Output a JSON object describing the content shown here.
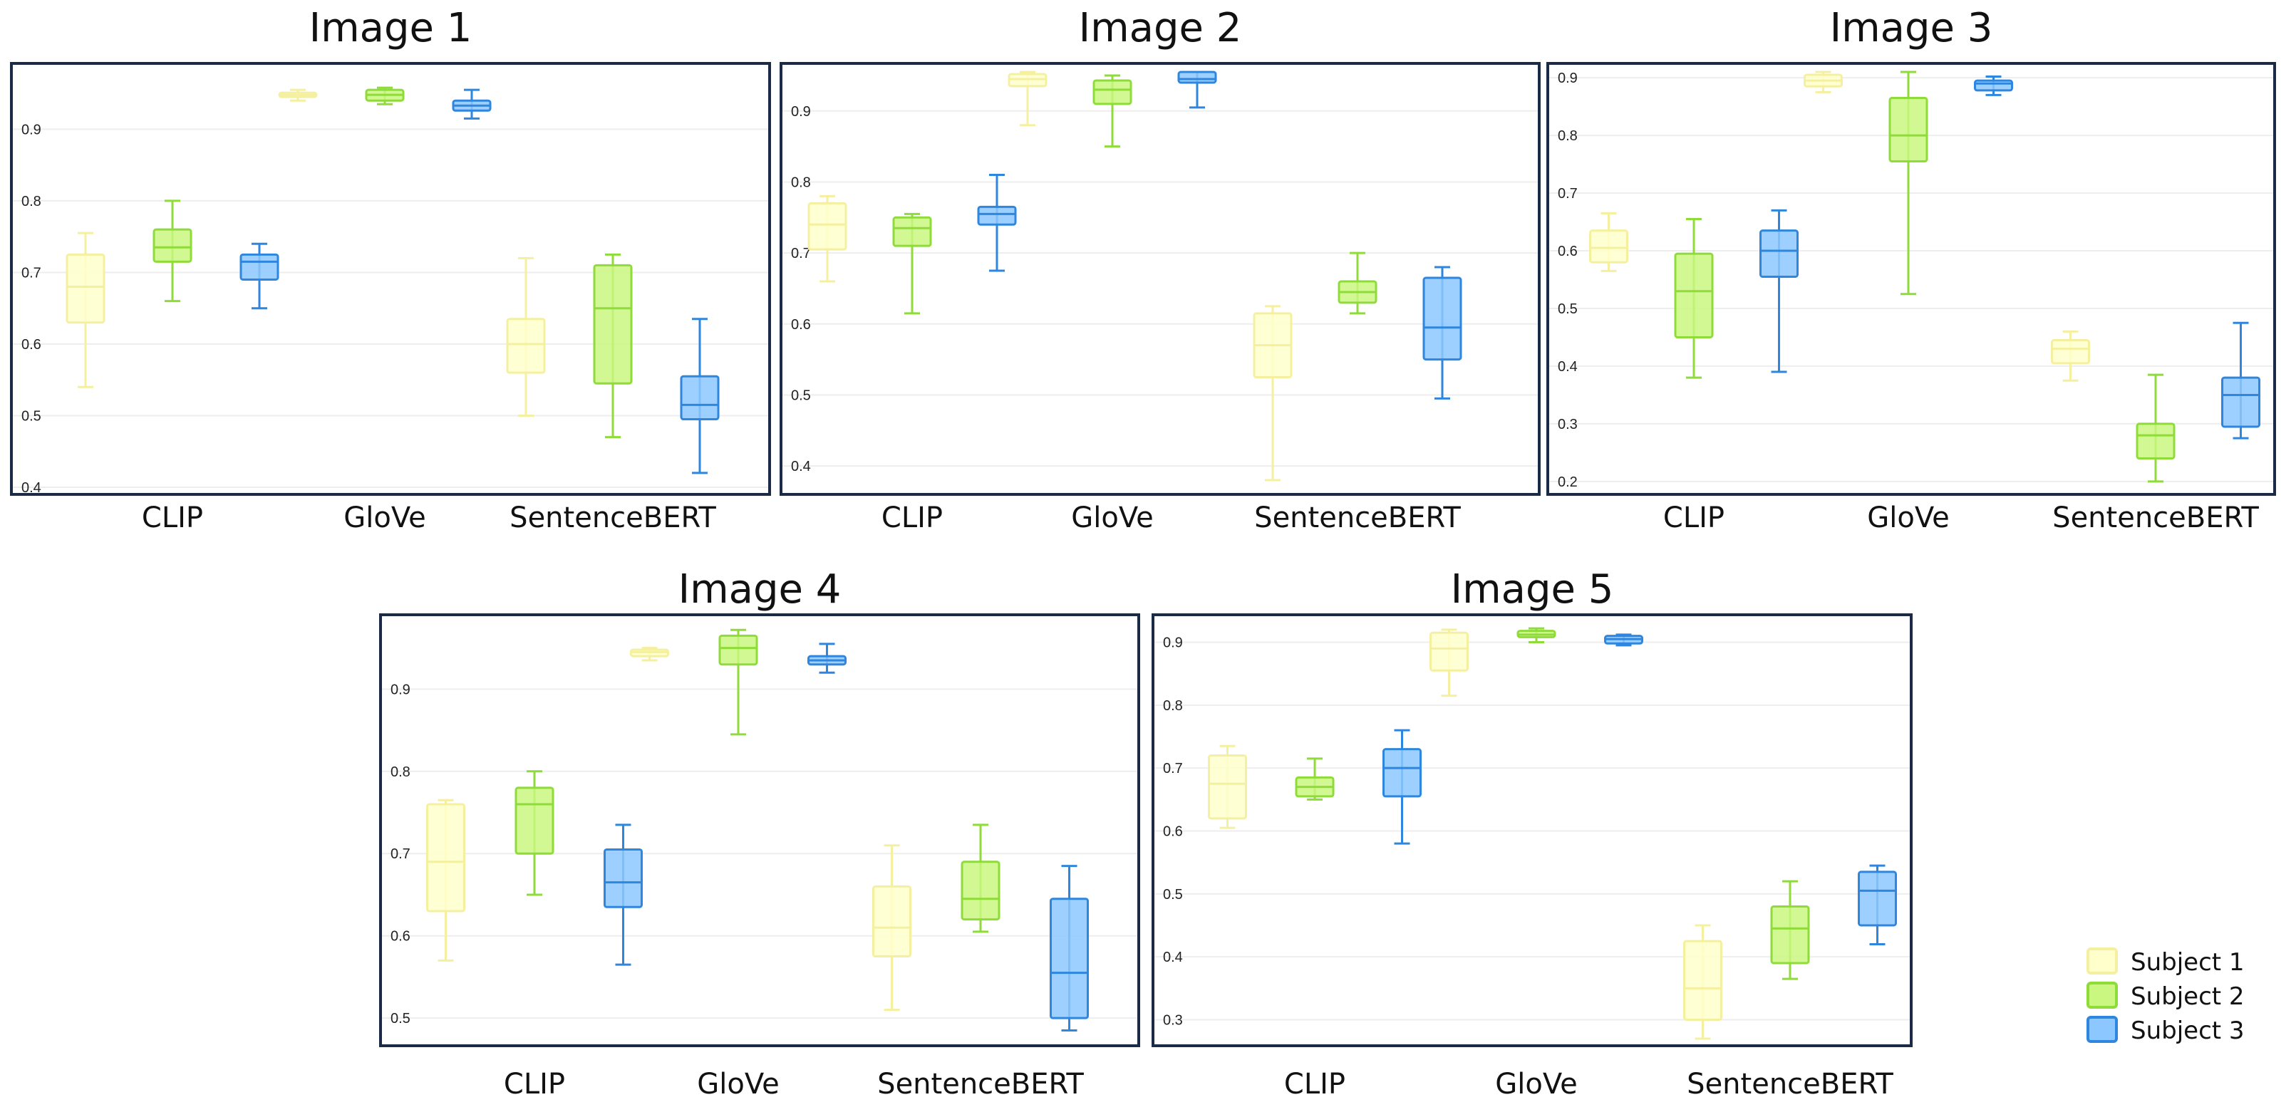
{
  "legend": {
    "entries": [
      {
        "label": "Subject 1",
        "fill": "#FFFFCC",
        "stroke": "#F4F0A0"
      },
      {
        "label": "Subject 2",
        "fill": "#C9F77F",
        "stroke": "#8FDB3A"
      },
      {
        "label": "Subject 3",
        "fill": "#8CC8FF",
        "stroke": "#2E86DE"
      }
    ]
  },
  "chart_data": [
    {
      "type": "box",
      "title": "Image 1",
      "categories": [
        "CLIP",
        "GloVe",
        "SentenceBERT"
      ],
      "ylim": [
        0.4,
        0.98
      ],
      "yticks": [
        "0.4",
        "0.5",
        "0.6",
        "0.7",
        "0.8",
        "0.9"
      ],
      "series": [
        {
          "name": "Subject 1",
          "boxes": [
            {
              "min": 0.54,
              "q1": 0.63,
              "median": 0.68,
              "q3": 0.725,
              "max": 0.755
            },
            {
              "min": 0.94,
              "q1": 0.945,
              "median": 0.948,
              "q3": 0.951,
              "max": 0.955
            },
            {
              "min": 0.5,
              "q1": 0.56,
              "median": 0.6,
              "q3": 0.635,
              "max": 0.72
            }
          ]
        },
        {
          "name": "Subject 2",
          "boxes": [
            {
              "min": 0.66,
              "q1": 0.715,
              "median": 0.735,
              "q3": 0.76,
              "max": 0.8
            },
            {
              "min": 0.935,
              "q1": 0.94,
              "median": 0.948,
              "q3": 0.955,
              "max": 0.958
            },
            {
              "min": 0.47,
              "q1": 0.545,
              "median": 0.65,
              "q3": 0.71,
              "max": 0.725
            }
          ]
        },
        {
          "name": "Subject 3",
          "boxes": [
            {
              "min": 0.65,
              "q1": 0.69,
              "median": 0.715,
              "q3": 0.725,
              "max": 0.74
            },
            {
              "min": 0.915,
              "q1": 0.926,
              "median": 0.933,
              "q3": 0.94,
              "max": 0.955
            },
            {
              "min": 0.42,
              "q1": 0.495,
              "median": 0.515,
              "q3": 0.555,
              "max": 0.635
            }
          ]
        }
      ]
    },
    {
      "type": "box",
      "title": "Image 2",
      "categories": [
        "CLIP",
        "GloVe",
        "SentenceBERT"
      ],
      "ylim": [
        0.37,
        0.955
      ],
      "yticks": [
        "0.4",
        "0.5",
        "0.6",
        "0.7",
        "0.8",
        "0.9"
      ],
      "series": [
        {
          "name": "Subject 1",
          "boxes": [
            {
              "min": 0.66,
              "q1": 0.705,
              "median": 0.74,
              "q3": 0.77,
              "max": 0.78
            },
            {
              "min": 0.88,
              "q1": 0.935,
              "median": 0.945,
              "q3": 0.952,
              "max": 0.955
            },
            {
              "min": 0.38,
              "q1": 0.525,
              "median": 0.57,
              "q3": 0.615,
              "max": 0.625
            }
          ]
        },
        {
          "name": "Subject 2",
          "boxes": [
            {
              "min": 0.615,
              "q1": 0.71,
              "median": 0.735,
              "q3": 0.75,
              "max": 0.755
            },
            {
              "min": 0.85,
              "q1": 0.91,
              "median": 0.93,
              "q3": 0.943,
              "max": 0.95
            },
            {
              "min": 0.615,
              "q1": 0.63,
              "median": 0.645,
              "q3": 0.66,
              "max": 0.7
            }
          ]
        },
        {
          "name": "Subject 3",
          "boxes": [
            {
              "min": 0.675,
              "q1": 0.74,
              "median": 0.755,
              "q3": 0.765,
              "max": 0.81
            },
            {
              "min": 0.905,
              "q1": 0.94,
              "median": 0.945,
              "q3": 0.955,
              "max": 0.955
            },
            {
              "min": 0.495,
              "q1": 0.55,
              "median": 0.595,
              "q3": 0.665,
              "max": 0.68
            }
          ]
        }
      ]
    },
    {
      "type": "box",
      "title": "Image 3",
      "categories": [
        "CLIP",
        "GloVe",
        "SentenceBERT"
      ],
      "ylim": [
        0.19,
        0.91
      ],
      "yticks": [
        "0.2",
        "0.3",
        "0.4",
        "0.5",
        "0.6",
        "0.7",
        "0.8",
        "0.9"
      ],
      "series": [
        {
          "name": "Subject 1",
          "boxes": [
            {
              "min": 0.565,
              "q1": 0.58,
              "median": 0.605,
              "q3": 0.635,
              "max": 0.665
            },
            {
              "min": 0.875,
              "q1": 0.885,
              "median": 0.895,
              "q3": 0.905,
              "max": 0.91
            },
            {
              "min": 0.375,
              "q1": 0.405,
              "median": 0.43,
              "q3": 0.445,
              "max": 0.46
            }
          ]
        },
        {
          "name": "Subject 2",
          "boxes": [
            {
              "min": 0.38,
              "q1": 0.45,
              "median": 0.53,
              "q3": 0.595,
              "max": 0.655
            },
            {
              "min": 0.525,
              "q1": 0.755,
              "median": 0.8,
              "q3": 0.865,
              "max": 0.91
            },
            {
              "min": 0.2,
              "q1": 0.24,
              "median": 0.28,
              "q3": 0.3,
              "max": 0.385
            }
          ]
        },
        {
          "name": "Subject 3",
          "boxes": [
            {
              "min": 0.39,
              "q1": 0.555,
              "median": 0.6,
              "q3": 0.635,
              "max": 0.67
            },
            {
              "min": 0.87,
              "q1": 0.878,
              "median": 0.89,
              "q3": 0.895,
              "max": 0.902
            },
            {
              "min": 0.275,
              "q1": 0.295,
              "median": 0.35,
              "q3": 0.38,
              "max": 0.475
            }
          ]
        }
      ]
    },
    {
      "type": "box",
      "title": "Image 4",
      "categories": [
        "CLIP",
        "GloVe",
        "SentenceBERT"
      ],
      "ylim": [
        0.475,
        0.98
      ],
      "yticks": [
        "0.5",
        "0.6",
        "0.7",
        "0.8",
        "0.9"
      ],
      "series": [
        {
          "name": "Subject 1",
          "boxes": [
            {
              "min": 0.57,
              "q1": 0.63,
              "median": 0.69,
              "q3": 0.76,
              "max": 0.765
            },
            {
              "min": 0.935,
              "q1": 0.94,
              "median": 0.945,
              "q3": 0.948,
              "max": 0.95
            },
            {
              "min": 0.51,
              "q1": 0.575,
              "median": 0.61,
              "q3": 0.66,
              "max": 0.71
            }
          ]
        },
        {
          "name": "Subject 2",
          "boxes": [
            {
              "min": 0.65,
              "q1": 0.7,
              "median": 0.76,
              "q3": 0.78,
              "max": 0.8
            },
            {
              "min": 0.845,
              "q1": 0.93,
              "median": 0.95,
              "q3": 0.965,
              "max": 0.972
            },
            {
              "min": 0.605,
              "q1": 0.62,
              "median": 0.645,
              "q3": 0.69,
              "max": 0.735
            }
          ]
        },
        {
          "name": "Subject 3",
          "boxes": [
            {
              "min": 0.565,
              "q1": 0.635,
              "median": 0.665,
              "q3": 0.705,
              "max": 0.735
            },
            {
              "min": 0.92,
              "q1": 0.93,
              "median": 0.935,
              "q3": 0.94,
              "max": 0.955
            },
            {
              "min": 0.485,
              "q1": 0.5,
              "median": 0.555,
              "q3": 0.645,
              "max": 0.685
            }
          ]
        }
      ]
    },
    {
      "type": "box",
      "title": "Image 5",
      "categories": [
        "CLIP",
        "GloVe",
        "SentenceBERT"
      ],
      "ylim": [
        0.27,
        0.93
      ],
      "yticks": [
        "0.3",
        "0.4",
        "0.5",
        "0.6",
        "0.7",
        "0.8",
        "0.9"
      ],
      "series": [
        {
          "name": "Subject 1",
          "boxes": [
            {
              "min": 0.605,
              "q1": 0.62,
              "median": 0.675,
              "q3": 0.72,
              "max": 0.735
            },
            {
              "min": 0.815,
              "q1": 0.855,
              "median": 0.89,
              "q3": 0.915,
              "max": 0.92
            },
            {
              "min": 0.27,
              "q1": 0.3,
              "median": 0.35,
              "q3": 0.425,
              "max": 0.45
            }
          ]
        },
        {
          "name": "Subject 2",
          "boxes": [
            {
              "min": 0.65,
              "q1": 0.655,
              "median": 0.67,
              "q3": 0.685,
              "max": 0.715
            },
            {
              "min": 0.9,
              "q1": 0.908,
              "median": 0.912,
              "q3": 0.918,
              "max": 0.922
            },
            {
              "min": 0.365,
              "q1": 0.39,
              "median": 0.445,
              "q3": 0.48,
              "max": 0.52
            }
          ]
        },
        {
          "name": "Subject 3",
          "boxes": [
            {
              "min": 0.58,
              "q1": 0.655,
              "median": 0.7,
              "q3": 0.73,
              "max": 0.76
            },
            {
              "min": 0.895,
              "q1": 0.898,
              "median": 0.905,
              "q3": 0.91,
              "max": 0.912
            },
            {
              "min": 0.42,
              "q1": 0.45,
              "median": 0.505,
              "q3": 0.535,
              "max": 0.545
            }
          ]
        }
      ]
    }
  ]
}
